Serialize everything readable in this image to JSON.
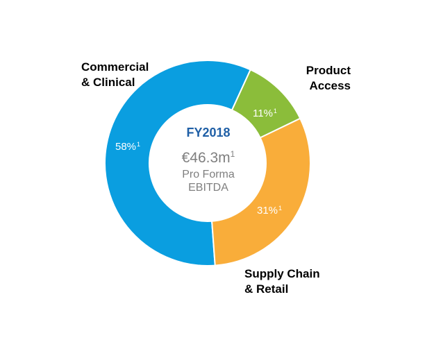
{
  "chart_data": {
    "type": "pie",
    "donut": true,
    "center": {
      "title": "FY2018",
      "value": "€46.3m",
      "value_footnote": "1",
      "caption_line1": "Pro Forma",
      "caption_line2": "EBITDA"
    },
    "slices": [
      {
        "label_line1": "Commercial",
        "label_line2": "& Clinical",
        "value": 58,
        "pct_label": "58%",
        "footnote": "1",
        "color": "#0a9ee0"
      },
      {
        "label_line1": "Product",
        "label_line2": "Access",
        "value": 11,
        "pct_label": "11%",
        "footnote": "1",
        "color": "#8bbd3a"
      },
      {
        "label_line1": "Supply Chain",
        "label_line2": "& Retail",
        "value": 31,
        "pct_label": "31%",
        "footnote": "1",
        "color": "#f9ad3a"
      }
    ]
  }
}
